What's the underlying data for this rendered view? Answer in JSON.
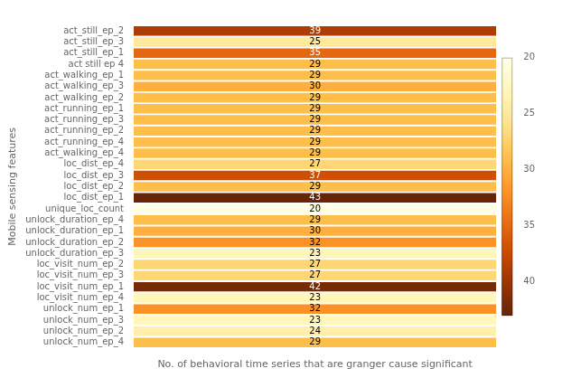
{
  "chart_data": {
    "type": "heatmap",
    "categories": [
      "act_still_ep_2",
      "act_still_ep_3",
      "act_still_ep_1",
      "act still ep 4",
      "act_walking_ep_1",
      "act_walking_ep_3",
      "act_walking_ep_2",
      "act_running_ep_1",
      "act_running_ep_3",
      "act_running_ep_2",
      "act_running_ep_4",
      "act_walking_ep_4",
      "loc_dist_ep_4",
      "loc_dist_ep_3",
      "loc_dist_ep_2",
      "loc_dist_ep_1",
      "unique_loc_count",
      "unlock_duration_ep_4",
      "unlock_duration_ep_1",
      "unlock_duration_ep_2",
      "unlock_duration_ep_3",
      "loc_visit_num_ep_2",
      "loc_visit_num_ep_3",
      "loc_visit_num_ep_1",
      "loc_visit_num_ep_4",
      "unlock_num_ep_1",
      "unlock_num_ep_3",
      "unlock_num_ep_2",
      "unlock_num_ep_4"
    ],
    "values": [
      39,
      25,
      35,
      29,
      29,
      30,
      29,
      29,
      29,
      29,
      29,
      29,
      27,
      37,
      29,
      43,
      20,
      29,
      30,
      32,
      23,
      27,
      27,
      42,
      23,
      32,
      23,
      24,
      29
    ],
    "xlabel": "No. of behavioral time series that are granger cause significant",
    "ylabel": "Mobile sensing features",
    "colorbar_range": [
      20,
      43
    ],
    "colorbar_ticks": [
      40,
      35,
      30,
      25,
      20
    ],
    "data_labels": true,
    "tick_labels": "y",
    "grid": false
  }
}
